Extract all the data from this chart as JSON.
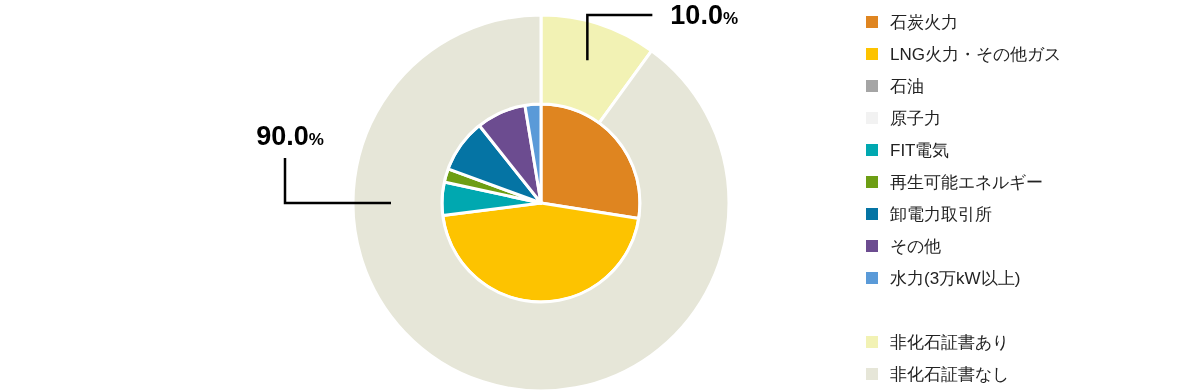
{
  "chart_data": [
    {
      "type": "pie",
      "categories": [
        "石炭火力",
        "LNG火力・その他ガス",
        "石油",
        "原子力",
        "FIT電気",
        "再生可能エネルギー",
        "卸電力取引所",
        "その他",
        "水力(3万kW以上)"
      ],
      "values": [
        27.5,
        45.5,
        0,
        0,
        5.4,
        2.2,
        8.7,
        8.1,
        2.6
      ],
      "colors": [
        "#df8520",
        "#fdc300",
        "#a5a5a5",
        "#f2f2f2",
        "#00a8b0",
        "#6d9e14",
        "#0574a4",
        "#6c4c90",
        "#5a9ad8"
      ],
      "legend": "right"
    },
    {
      "type": "donut",
      "categories": [
        "非化石証書あり",
        "非化石証書なし"
      ],
      "values": [
        10.0,
        90.0
      ],
      "colors": [
        "#f2f2b4",
        "#e6e6d8"
      ],
      "value_labels": [
        "10.0%",
        "90.0%"
      ],
      "legend": "right"
    }
  ]
}
